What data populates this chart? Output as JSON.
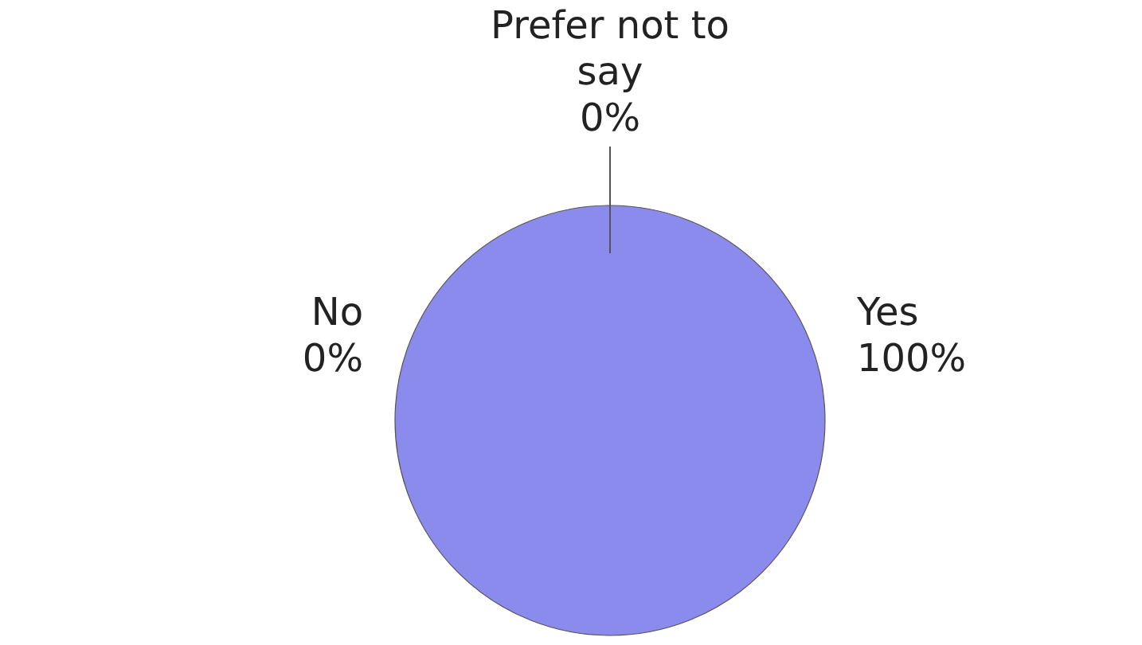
{
  "chart_data": {
    "type": "pie",
    "categories": [
      "No",
      "Prefer not to say",
      "Yes"
    ],
    "values": [
      0,
      0,
      100
    ],
    "colors": [
      "#5b5bc0",
      "#3d3d99",
      "#8b8bed"
    ],
    "value_labels": [
      "0%",
      "0%",
      "100%"
    ]
  }
}
